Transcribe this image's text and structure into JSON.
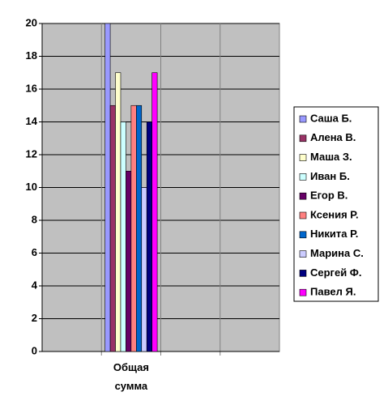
{
  "chart_data": {
    "type": "bar",
    "categories": [
      null,
      "Общая сумма",
      null,
      null
    ],
    "series": [
      {
        "name": "Саша Б.",
        "color": "#9999ff",
        "values": [
          null,
          20,
          null,
          null
        ]
      },
      {
        "name": "Алена В.",
        "color": "#993366",
        "values": [
          null,
          15,
          null,
          null
        ]
      },
      {
        "name": "Маша З.",
        "color": "#ffffcc",
        "values": [
          null,
          17,
          null,
          null
        ]
      },
      {
        "name": "Иван Б.",
        "color": "#ccffff",
        "values": [
          null,
          14,
          null,
          null
        ]
      },
      {
        "name": "Егор В.",
        "color": "#660066",
        "values": [
          null,
          11,
          null,
          null
        ]
      },
      {
        "name": "Ксения Р.",
        "color": "#ff8080",
        "values": [
          null,
          15,
          null,
          null
        ]
      },
      {
        "name": "Никита Р.",
        "color": "#0066cc",
        "values": [
          null,
          15,
          null,
          null
        ]
      },
      {
        "name": "Марина С.",
        "color": "#ccccff",
        "values": [
          null,
          10,
          null,
          null
        ]
      },
      {
        "name": "Сергей Ф.",
        "color": "#000080",
        "values": [
          null,
          14,
          null,
          null
        ]
      },
      {
        "name": "Павел Я.",
        "color": "#ff00ff",
        "values": [
          null,
          17,
          null,
          null
        ]
      }
    ],
    "ylim": [
      0,
      20
    ],
    "yticks": [
      0,
      2,
      4,
      6,
      8,
      10,
      12,
      14,
      16,
      18,
      20
    ],
    "grid": true,
    "legend": "right"
  }
}
